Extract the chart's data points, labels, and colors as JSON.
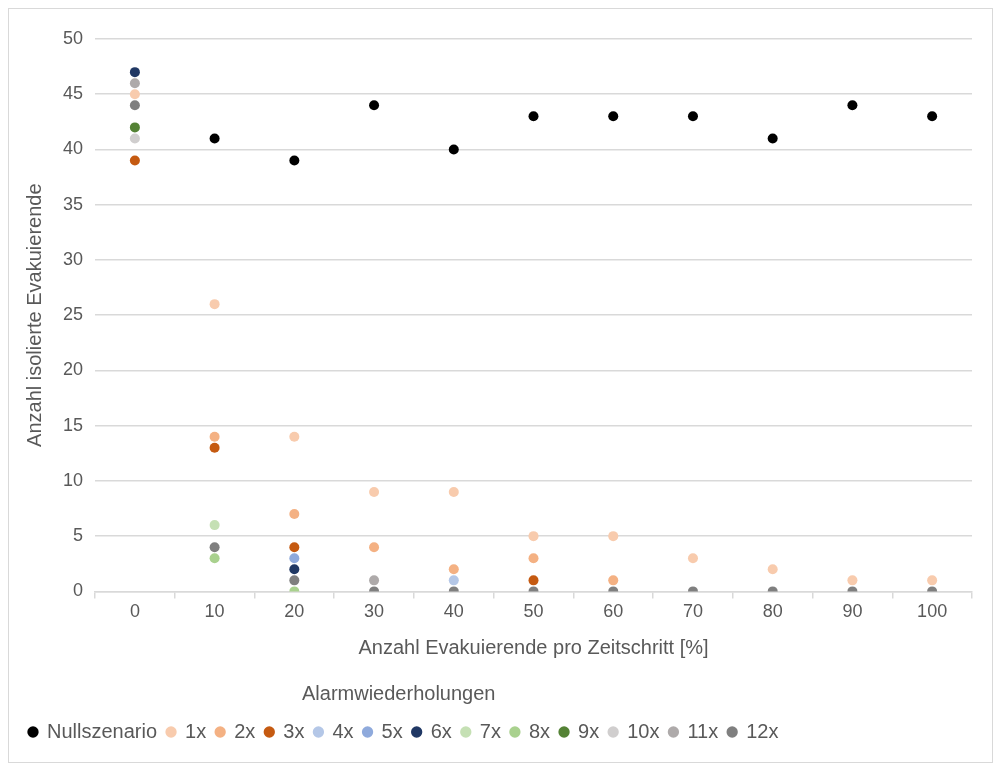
{
  "chart_data": {
    "type": "scatter",
    "xlabel": "Anzahl Evakuierende pro Zeitschritt [%]",
    "ylabel": "Anzahl isolierte Evakuierende",
    "legend_title": "Alarmwiederholungen",
    "categories": [
      "0",
      "10",
      "20",
      "30",
      "40",
      "50",
      "60",
      "70",
      "80",
      "90",
      "100"
    ],
    "ylim": [
      0,
      50
    ],
    "yticks": [
      0,
      5,
      10,
      15,
      20,
      25,
      30,
      35,
      40,
      45,
      50
    ],
    "grid": "y",
    "legend": "bottom",
    "marker": "circle",
    "series": [
      {
        "name": "Nullszenario",
        "color": "#000000",
        "values": [
          null,
          41,
          39,
          44,
          40,
          43,
          43,
          43,
          41,
          44,
          43
        ]
      },
      {
        "name": "1x",
        "color": "#f8cbad",
        "values": [
          45,
          26,
          14,
          9,
          9,
          5,
          5,
          3,
          2,
          1,
          1
        ]
      },
      {
        "name": "2x",
        "color": "#f4b183",
        "values": [
          null,
          14,
          7,
          4,
          2,
          3,
          1,
          null,
          null,
          null,
          null
        ]
      },
      {
        "name": "3x",
        "color": "#c55a11",
        "values": [
          39,
          13,
          4,
          null,
          null,
          1,
          null,
          null,
          null,
          null,
          null
        ]
      },
      {
        "name": "4x",
        "color": "#b4c7e7",
        "values": [
          null,
          null,
          null,
          null,
          1,
          null,
          null,
          null,
          null,
          null,
          null
        ]
      },
      {
        "name": "5x",
        "color": "#8faadc",
        "values": [
          null,
          null,
          3,
          null,
          null,
          null,
          null,
          null,
          null,
          null,
          null
        ]
      },
      {
        "name": "6x",
        "color": "#203864",
        "values": [
          47,
          null,
          2,
          null,
          null,
          null,
          null,
          null,
          null,
          null,
          null
        ]
      },
      {
        "name": "7x",
        "color": "#c5e0b4",
        "values": [
          null,
          6,
          null,
          null,
          null,
          null,
          null,
          null,
          null,
          null,
          null
        ]
      },
      {
        "name": "8x",
        "color": "#a9d18e",
        "values": [
          null,
          3,
          0,
          null,
          null,
          null,
          null,
          null,
          null,
          null,
          null
        ]
      },
      {
        "name": "9x",
        "color": "#548235",
        "values": [
          42,
          null,
          null,
          null,
          null,
          null,
          null,
          null,
          null,
          null,
          null
        ]
      },
      {
        "name": "10x",
        "color": "#d0cece",
        "values": [
          41,
          null,
          null,
          null,
          null,
          null,
          null,
          null,
          null,
          null,
          null
        ]
      },
      {
        "name": "11x",
        "color": "#aeaaaa",
        "values": [
          46,
          null,
          null,
          1,
          null,
          null,
          null,
          null,
          null,
          null,
          null
        ]
      },
      {
        "name": "12x",
        "color": "#7f7f7f",
        "values": [
          44,
          4,
          1,
          0,
          0,
          0,
          0,
          0,
          0,
          0,
          0
        ]
      }
    ]
  }
}
